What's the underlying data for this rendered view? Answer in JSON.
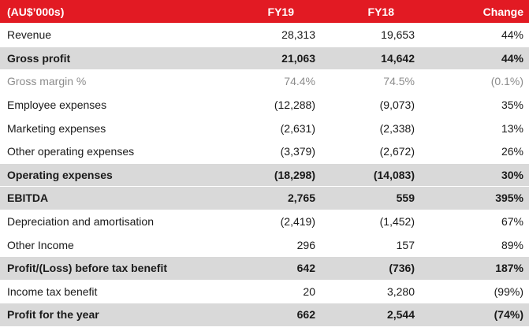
{
  "table": {
    "header": {
      "label": "(AU$’000s)",
      "fy19": "FY19",
      "fy18": "FY18",
      "change": "Change"
    },
    "rows": [
      {
        "label": "Revenue",
        "fy19": "28,313",
        "fy18": "19,653",
        "change": "44%"
      },
      {
        "label": "Gross profit",
        "fy19": "21,063",
        "fy18": "14,642",
        "change": "44%"
      },
      {
        "label": "Gross margin %",
        "fy19": "74.4%",
        "fy18": "74.5%",
        "change": "(0.1%)"
      },
      {
        "label": "Employee expenses",
        "fy19": "(12,288)",
        "fy18": "(9,073)",
        "change": "35%"
      },
      {
        "label": "Marketing expenses",
        "fy19": "(2,631)",
        "fy18": "(2,338)",
        "change": "13%"
      },
      {
        "label": "Other operating expenses",
        "fy19": "(3,379)",
        "fy18": "(2,672)",
        "change": "26%"
      },
      {
        "label": "Operating expenses",
        "fy19": "(18,298)",
        "fy18": "(14,083)",
        "change": "30%"
      },
      {
        "label": "EBITDA",
        "fy19": "2,765",
        "fy18": "559",
        "change": "395%"
      },
      {
        "label": "Depreciation and amortisation",
        "fy19": "(2,419)",
        "fy18": "(1,452)",
        "change": "67%"
      },
      {
        "label": "Other Income",
        "fy19": "296",
        "fy18": "157",
        "change": "89%"
      },
      {
        "label": "Profit/(Loss) before tax benefit",
        "fy19": "642",
        "fy18": "(736)",
        "change": "187%"
      },
      {
        "label": "Income tax benefit",
        "fy19": "20",
        "fy18": "3,280",
        "change": "(99%)"
      },
      {
        "label": "Profit for the year",
        "fy19": "662",
        "fy18": "2,544",
        "change": "(74%)"
      }
    ]
  },
  "colors": {
    "header_bg": "#e21a23",
    "shaded_bg": "#d9d9d9",
    "muted_text": "#8c8c8c"
  }
}
